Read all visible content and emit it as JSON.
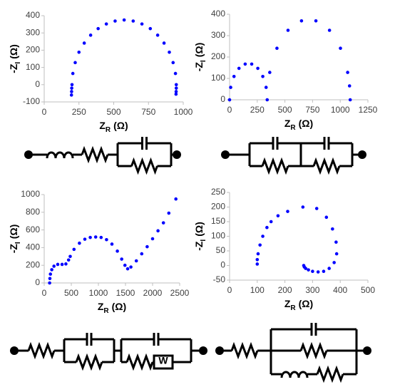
{
  "chart_data": [
    {
      "type": "scatter",
      "x_label": [
        "Z",
        "R",
        "(Ω)"
      ],
      "y_label": [
        "-Z",
        "I",
        "(Ω)"
      ],
      "xlim": [
        0,
        1000
      ],
      "xticks": [
        0,
        250,
        500,
        750,
        1000
      ],
      "ylim": [
        -100,
        400
      ],
      "yticks": [
        -100,
        0,
        100,
        200,
        300,
        400
      ],
      "series": [
        {
          "color": "#0000ff",
          "x": [
            196,
            197,
            198,
            200,
            206,
            223,
            250,
            288,
            334,
            388,
            447,
            510,
            575,
            640,
            703,
            763,
            816,
            862,
            900,
            927,
            944,
            950,
            950,
            949,
            948
          ],
          "values": [
            -60,
            -40,
            -20,
            0,
            65,
            128,
            188,
            241,
            287,
            325,
            352,
            369,
            375,
            369,
            352,
            325,
            287,
            241,
            188,
            128,
            65,
            0,
            -20,
            -40,
            -55
          ]
        }
      ]
    },
    {
      "type": "scatter",
      "x_label": [
        "Z",
        "R",
        "(Ω)"
      ],
      "y_label": [
        "-Z",
        "I",
        "(Ω)"
      ],
      "xlim": [
        0,
        1250
      ],
      "xticks": [
        0,
        250,
        500,
        750,
        1000,
        1250
      ],
      "ylim": [
        0,
        400
      ],
      "yticks": [
        0,
        100,
        200,
        300,
        400
      ],
      "series": [
        {
          "color": "#0000ff",
          "x": [
            0,
            10,
            40,
            85,
            141,
            200,
            255,
            300,
            330,
            340,
            363,
            428,
            528,
            650,
            780,
            903,
            1002,
            1067,
            1084,
            1090
          ],
          "values": [
            0,
            58,
            109,
            147,
            167,
            167,
            147,
            109,
            58,
            0,
            128,
            241,
            325,
            369,
            369,
            325,
            241,
            128,
            65,
            0
          ]
        }
      ]
    },
    {
      "type": "scatter",
      "x_label": [
        "Z",
        "R",
        "(Ω)"
      ],
      "y_label": [
        "-Z",
        "I",
        "(Ω)"
      ],
      "xlim": [
        0,
        2500
      ],
      "xticks": [
        0,
        500,
        1000,
        1500,
        2000,
        2500
      ],
      "ylim": [
        0,
        1000
      ],
      "yticks": [
        0,
        200,
        400,
        600,
        800,
        1000
      ],
      "series": [
        {
          "color": "#0000ff",
          "x": [
            100,
            105,
            115,
            140,
            180,
            250,
            330,
            400,
            450,
            480,
            550,
            650,
            750,
            850,
            950,
            1050,
            1150,
            1250,
            1350,
            1430,
            1490,
            1540,
            1600,
            1700,
            1800,
            1900,
            2000,
            2100,
            2200,
            2300,
            2430
          ],
          "values": [
            0,
            50,
            100,
            150,
            190,
            210,
            210,
            215,
            260,
            300,
            380,
            450,
            495,
            515,
            520,
            515,
            490,
            440,
            360,
            270,
            200,
            160,
            180,
            250,
            330,
            410,
            500,
            590,
            680,
            790,
            950
          ]
        }
      ]
    },
    {
      "type": "scatter",
      "x_label": [
        "Z",
        "R",
        "(Ω)"
      ],
      "y_label": [
        "-Z",
        "I",
        "(Ω)"
      ],
      "xlim": [
        0,
        500
      ],
      "xticks": [
        0,
        100,
        200,
        300,
        400,
        500
      ],
      "ylim": [
        -50,
        250
      ],
      "yticks": [
        -50,
        0,
        50,
        100,
        150,
        200,
        250
      ],
      "series": [
        {
          "color": "#0000ff",
          "x": [
            100,
            100,
            103,
            110,
            120,
            135,
            150,
            175,
            210,
            265,
            315,
            350,
            372,
            385,
            387,
            378,
            360,
            340,
            320,
            300,
            285,
            275,
            270,
            268
          ],
          "values": [
            5,
            20,
            40,
            70,
            100,
            130,
            150,
            170,
            185,
            200,
            195,
            165,
            125,
            80,
            40,
            10,
            -10,
            -20,
            -22,
            -20,
            -15,
            -10,
            -5,
            0
          ]
        }
      ]
    }
  ],
  "diagram": {
    "warburg_label": "W"
  }
}
